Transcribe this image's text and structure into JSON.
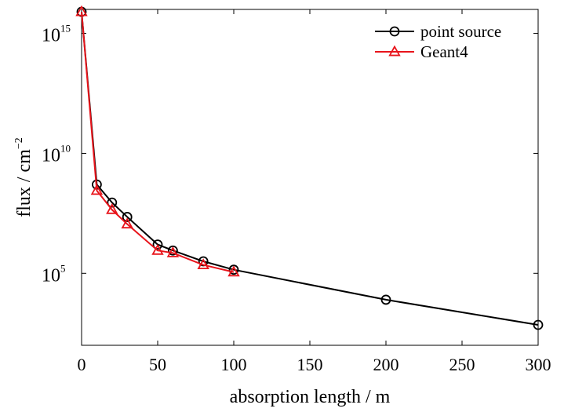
{
  "chart_data": {
    "type": "line",
    "xlabel": "absorption length / m",
    "ylabel": "flux / cm",
    "ylabel_superscript": "−2",
    "y_scale": "log",
    "xlim": [
      0,
      300
    ],
    "ylim_log10": [
      2,
      16
    ],
    "x_ticks": [
      0,
      50,
      100,
      150,
      200,
      250,
      300
    ],
    "y_ticks": [
      {
        "base": "10",
        "exp": "5",
        "log10": 5
      },
      {
        "base": "10",
        "exp": "10",
        "log10": 10
      },
      {
        "base": "10",
        "exp": "15",
        "log10": 15
      }
    ],
    "grid": false,
    "legend_position": "top-right",
    "series": [
      {
        "name": "point source",
        "color": "#000000",
        "marker": "circle",
        "x": [
          0,
          10,
          20,
          30,
          50,
          60,
          80,
          100,
          200,
          300
        ],
        "log10_y": [
          15.9,
          8.7,
          7.95,
          7.35,
          6.2,
          5.95,
          5.5,
          5.15,
          3.9,
          2.85
        ]
      },
      {
        "name": "Geant4",
        "color": "#e8141b",
        "marker": "triangle",
        "x": [
          0,
          10,
          20,
          30,
          50,
          60,
          80,
          100
        ],
        "log10_y": [
          15.9,
          8.45,
          7.65,
          7.05,
          5.95,
          5.85,
          5.35,
          5.05
        ]
      }
    ]
  }
}
